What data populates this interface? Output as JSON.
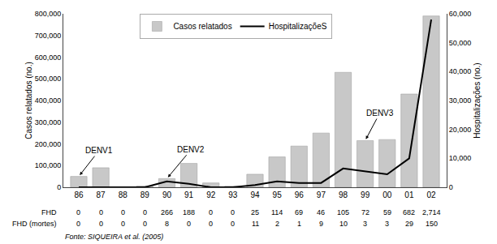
{
  "chart_data": {
    "type": "bar",
    "categories": [
      "86",
      "87",
      "88",
      "89",
      "90",
      "91",
      "92",
      "93",
      "94",
      "95",
      "96",
      "97",
      "98",
      "99",
      "00",
      "01",
      "02"
    ],
    "series": [
      {
        "name": "Casos relatados",
        "type": "bar",
        "color": "#c8c8c8",
        "values": [
          50000,
          90000,
          0,
          6000,
          40000,
          110000,
          20000,
          5000,
          60000,
          140000,
          190000,
          250000,
          530000,
          215000,
          220000,
          430000,
          790000
        ]
      },
      {
        "name": "HospitalizaçõeS",
        "type": "line",
        "color": "#000000",
        "axis": "y2",
        "values": [
          0,
          0,
          0,
          0,
          2000,
          1200,
          0,
          0,
          800,
          2000,
          1500,
          1500,
          6500,
          5500,
          4500,
          10000,
          58000
        ]
      }
    ],
    "ylabel": "Casos relatados (no.)",
    "y2label": "Hospitalizações (no.)",
    "ylim": [
      0,
      800000
    ],
    "yticks": [
      0,
      {
        "value": 100000,
        "label": "100,000"
      },
      {
        "value": 200000,
        "label": "200,000"
      },
      {
        "value": 300000,
        "label": "300,000"
      },
      {
        "value": 400000,
        "label": "400,000"
      },
      {
        "value": 500000,
        "label": "500,000"
      },
      {
        "value": 600000,
        "label": "600,000"
      },
      {
        "value": 700000,
        "label": "700,000"
      },
      {
        "value": 800000,
        "label": "800,000"
      }
    ],
    "y2lim": [
      0,
      60000
    ],
    "y2ticks": [
      0,
      {
        "value": 10000,
        "label": "10,000"
      },
      {
        "value": 20000,
        "label": "20,000"
      },
      {
        "value": 30000,
        "label": "30,000"
      },
      {
        "value": 40000,
        "label": "40,000"
      },
      {
        "value": 50000,
        "label": "50,000"
      },
      {
        "value": 60000,
        "label": "60,000"
      }
    ],
    "grid": false,
    "legend": "upper left",
    "annotations": [
      {
        "text": "DENV1",
        "category": "86"
      },
      {
        "text": "DENV2",
        "category": "90"
      },
      {
        "text": "DENV3",
        "category": "99"
      }
    ],
    "table": [
      {
        "label": "FHD",
        "values": [
          0,
          0,
          0,
          0,
          266,
          188,
          0,
          0,
          25,
          114,
          69,
          46,
          105,
          72,
          59,
          682,
          2714
        ],
        "value_labels": [
          "0",
          "0",
          "0",
          "0",
          "266",
          "188",
          "0",
          "0",
          "25",
          "114",
          "69",
          "46",
          "105",
          "72",
          "59",
          "682",
          "2,714"
        ]
      },
      {
        "label": "FHD (mortes)",
        "values": [
          0,
          0,
          0,
          0,
          8,
          0,
          0,
          0,
          11,
          2,
          1,
          9,
          10,
          3,
          3,
          29,
          150
        ]
      }
    ],
    "source": "Fonte: SIQUEIRA et al. (2005)"
  }
}
